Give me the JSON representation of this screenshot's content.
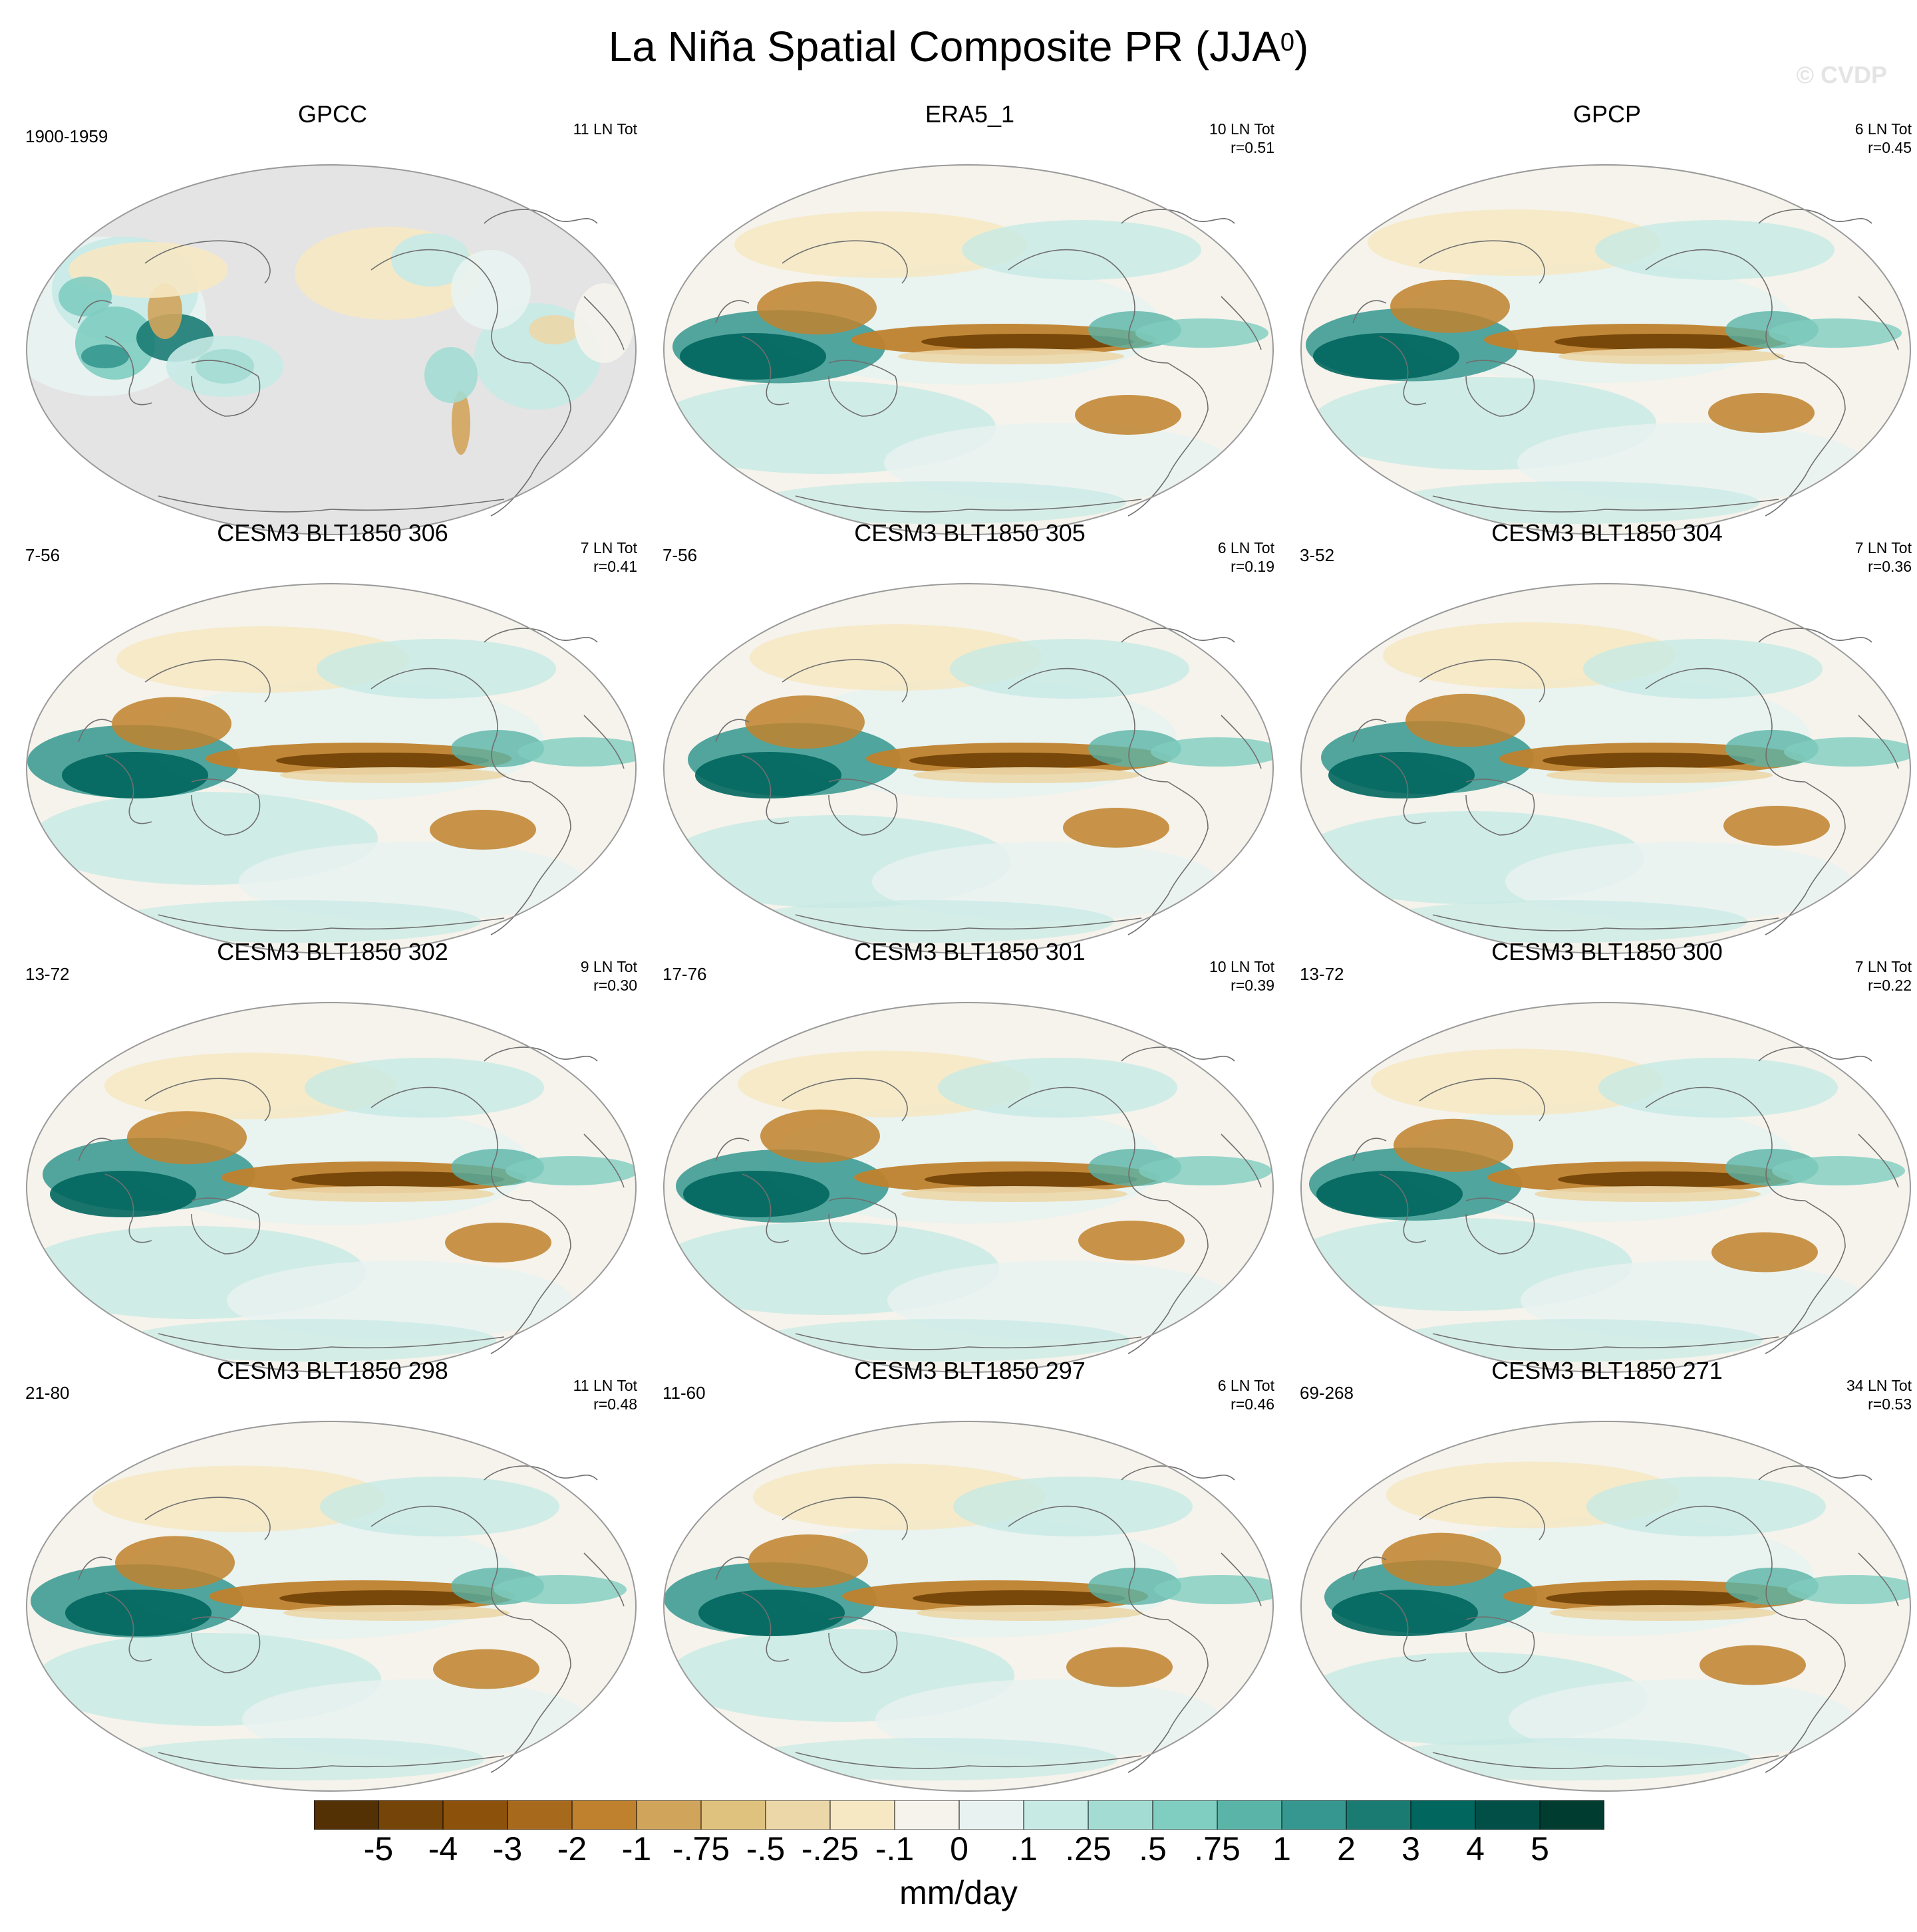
{
  "title": "La Niña Spatial Composite PR (JJA",
  "title_sup": "0",
  "title_close": ")",
  "watermark": "© CVDP",
  "colorbar": {
    "units": "mm/day",
    "tick_labels": [
      "-5",
      "-4",
      "-3",
      "-2",
      "-1",
      "-.75",
      "-.5",
      "-.25",
      "-.1",
      "0",
      ".1",
      ".25",
      ".5",
      ".75",
      "1",
      "2",
      "3",
      "4",
      "5"
    ],
    "colors": [
      "#543005",
      "#744408",
      "#8c510a",
      "#a76a1d",
      "#bf812d",
      "#d1a45b",
      "#dfc27d",
      "#ecd7a8",
      "#f6e8c3",
      "#f5f3ec",
      "#e8f3f1",
      "#c7eae5",
      "#a3dcd3",
      "#80cdc1",
      "#5ab4a7",
      "#35978f",
      "#1a7b73",
      "#01665e",
      "#024f47",
      "#003c30"
    ]
  },
  "panels": [
    {
      "title": "GPCC",
      "left": "1900-1959",
      "right1": "11 LN Tot",
      "right2": "",
      "style": "obs"
    },
    {
      "title": "ERA5_1",
      "left": "",
      "right1": "10 LN Tot",
      "right2": "r=0.51",
      "style": "full"
    },
    {
      "title": "GPCP",
      "left": "",
      "right1": "6 LN Tot",
      "right2": "r=0.45",
      "style": "full"
    },
    {
      "title": "CESM3 BLT1850 306",
      "left": "7-56",
      "right1": "7 LN Tot",
      "right2": "r=0.41",
      "style": "full"
    },
    {
      "title": "CESM3 BLT1850 305",
      "left": "7-56",
      "right1": "6 LN Tot",
      "right2": "r=0.19",
      "style": "full"
    },
    {
      "title": "CESM3 BLT1850 304",
      "left": "3-52",
      "right1": "7 LN Tot",
      "right2": "r=0.36",
      "style": "full"
    },
    {
      "title": "CESM3 BLT1850 302",
      "left": "13-72",
      "right1": "9 LN Tot",
      "right2": "r=0.30",
      "style": "full"
    },
    {
      "title": "CESM3 BLT1850 301",
      "left": "17-76",
      "right1": "10 LN Tot",
      "right2": "r=0.39",
      "style": "full"
    },
    {
      "title": "CESM3 BLT1850 300",
      "left": "13-72",
      "right1": "7 LN Tot",
      "right2": "r=0.22",
      "style": "full"
    },
    {
      "title": "CESM3 BLT1850 298",
      "left": "21-80",
      "right1": "11 LN Tot",
      "right2": "r=0.48",
      "style": "full"
    },
    {
      "title": "CESM3 BLT1850 297",
      "left": "11-60",
      "right1": "6 LN Tot",
      "right2": "r=0.46",
      "style": "full"
    },
    {
      "title": "CESM3 BLT1850 271",
      "left": "69-268",
      "right1": "34 LN Tot",
      "right2": "r=0.53",
      "style": "full"
    }
  ]
}
